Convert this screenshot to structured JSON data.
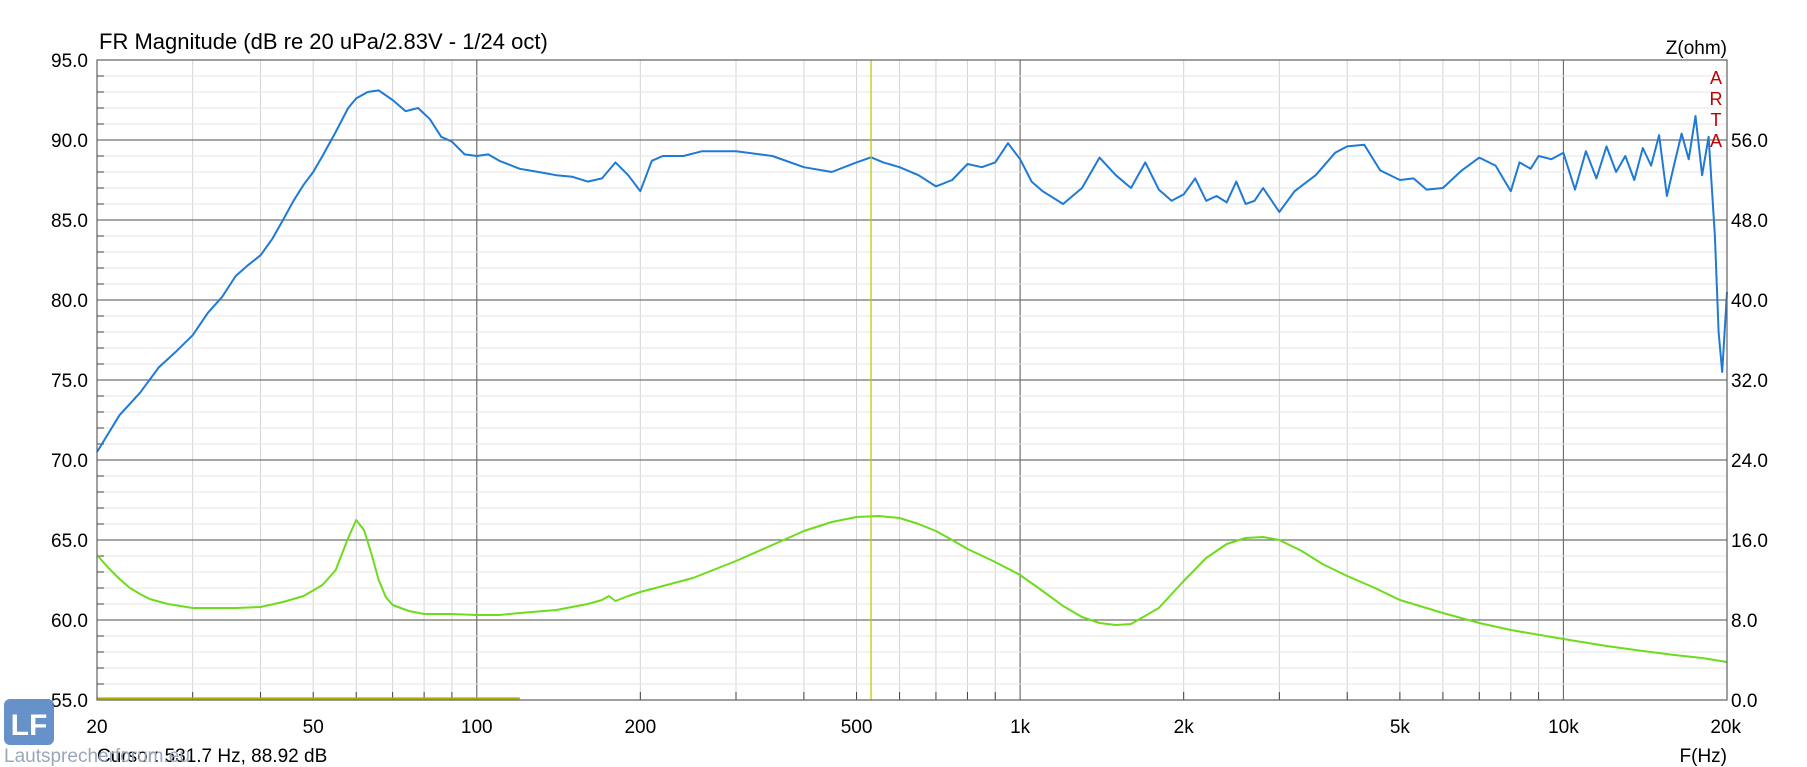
{
  "chart_data": {
    "type": "line",
    "title": "FR Magnitude (dB re 20 uPa/2.83V - 1/24 oct)",
    "xlabel": "F(Hz)",
    "ylabel_right": "Z(ohm)",
    "x_scale": "log",
    "xlim": [
      20,
      20000
    ],
    "ylim": [
      55,
      95
    ],
    "ylim_right": [
      0,
      64
    ],
    "x_ticks": [
      {
        "value": 20,
        "label": "20"
      },
      {
        "value": 50,
        "label": "50"
      },
      {
        "value": 100,
        "label": "100"
      },
      {
        "value": 200,
        "label": "200"
      },
      {
        "value": 500,
        "label": "500"
      },
      {
        "value": 1000,
        "label": "1k"
      },
      {
        "value": 2000,
        "label": "2k"
      },
      {
        "value": 5000,
        "label": "5k"
      },
      {
        "value": 10000,
        "label": "10k"
      },
      {
        "value": 20000,
        "label": "20k"
      }
    ],
    "y_ticks_left": [
      "95.0",
      "90.0",
      "85.0",
      "80.0",
      "75.0",
      "70.0",
      "65.0",
      "60.0",
      "55.0"
    ],
    "y_ticks_right": [
      "56.0",
      "48.0",
      "40.0",
      "32.0",
      "24.0",
      "16.0",
      "8.0",
      "0.0"
    ],
    "grid": true,
    "series": [
      {
        "axis": "left",
        "color": "#1f7ad6",
        "x": [
          20,
          22,
          24,
          26,
          28,
          30,
          32,
          34,
          36,
          38,
          40,
          42,
          44,
          46,
          48,
          50,
          52,
          55,
          58,
          60,
          63,
          66,
          70,
          74,
          78,
          82,
          86,
          90,
          95,
          100,
          105,
          110,
          120,
          130,
          140,
          150,
          160,
          170,
          180,
          190,
          200,
          210,
          220,
          240,
          260,
          280,
          300,
          350,
          400,
          450,
          500,
          531.7,
          560,
          600,
          650,
          700,
          750,
          800,
          850,
          900,
          950,
          1000,
          1050,
          1100,
          1200,
          1300,
          1400,
          1500,
          1600,
          1700,
          1800,
          1900,
          2000,
          2100,
          2200,
          2300,
          2400,
          2500,
          2600,
          2700,
          2800,
          3000,
          3200,
          3500,
          3800,
          4000,
          4300,
          4600,
          5000,
          5300,
          5600,
          6000,
          6500,
          7000,
          7500,
          8000,
          8300,
          8700,
          9000,
          9500,
          10000,
          10500,
          11000,
          11500,
          12000,
          12500,
          13000,
          13500,
          14000,
          14500,
          15000,
          15500,
          16000,
          16500,
          17000,
          17500,
          18000,
          18500,
          19000,
          19300,
          19600,
          20000
        ],
        "y": [
          70.5,
          72.8,
          74.2,
          75.8,
          76.8,
          77.8,
          79.2,
          80.2,
          81.5,
          82.2,
          82.8,
          83.8,
          85.0,
          86.2,
          87.2,
          88.0,
          89.0,
          90.5,
          92.0,
          92.6,
          93.0,
          93.1,
          92.5,
          91.8,
          92.0,
          91.3,
          90.2,
          89.9,
          89.1,
          89.0,
          89.1,
          88.7,
          88.2,
          88.0,
          87.8,
          87.7,
          87.4,
          87.6,
          88.6,
          87.8,
          86.8,
          88.7,
          89.0,
          89.0,
          89.3,
          89.3,
          89.3,
          89.0,
          88.3,
          88.0,
          88.6,
          88.92,
          88.6,
          88.3,
          87.8,
          87.1,
          87.5,
          88.5,
          88.3,
          88.6,
          89.8,
          88.8,
          87.4,
          86.8,
          86.0,
          87.0,
          88.9,
          87.8,
          87.0,
          88.6,
          86.9,
          86.2,
          86.6,
          87.6,
          86.2,
          86.5,
          86.1,
          87.4,
          86.0,
          86.2,
          87.0,
          85.5,
          86.8,
          87.8,
          89.2,
          89.6,
          89.7,
          88.1,
          87.5,
          87.6,
          86.9,
          87.0,
          88.1,
          88.9,
          88.4,
          86.8,
          88.6,
          88.2,
          89.0,
          88.8,
          89.2,
          86.9,
          89.3,
          87.6,
          89.6,
          88.0,
          89.0,
          87.5,
          89.5,
          88.4,
          90.3,
          86.5,
          88.5,
          90.4,
          88.8,
          91.5,
          87.8,
          90.2,
          84.0,
          78.0,
          75.5,
          80.5
        ]
      },
      {
        "axis": "right",
        "color": "#6ddc1c",
        "x": [
          20,
          21,
          22,
          23,
          24,
          25,
          27,
          30,
          33,
          36,
          40,
          44,
          48,
          52,
          55,
          58,
          60,
          62,
          64,
          66,
          68,
          70,
          75,
          80,
          90,
          100,
          110,
          120,
          140,
          160,
          170,
          175,
          180,
          190,
          200,
          250,
          300,
          350,
          400,
          450,
          500,
          550,
          600,
          650,
          700,
          750,
          800,
          900,
          1000,
          1100,
          1200,
          1300,
          1400,
          1500,
          1600,
          1800,
          2000,
          2200,
          2400,
          2600,
          2800,
          3000,
          3300,
          3600,
          4000,
          4500,
          5000,
          6000,
          7000,
          8000,
          10000,
          12000,
          14000,
          16000,
          18000,
          20000
        ],
        "y": [
          14.5,
          13.2,
          12.1,
          11.2,
          10.6,
          10.1,
          9.6,
          9.2,
          9.2,
          9.2,
          9.3,
          9.8,
          10.4,
          11.5,
          13.0,
          16.2,
          18.0,
          17.0,
          14.6,
          12.0,
          10.3,
          9.5,
          8.9,
          8.6,
          8.6,
          8.5,
          8.5,
          8.7,
          9.0,
          9.6,
          10.0,
          10.4,
          9.9,
          10.4,
          10.8,
          12.2,
          13.9,
          15.5,
          16.9,
          17.8,
          18.3,
          18.4,
          18.2,
          17.6,
          16.9,
          16.0,
          15.1,
          13.8,
          12.5,
          10.9,
          9.4,
          8.3,
          7.7,
          7.5,
          7.6,
          9.2,
          11.9,
          14.2,
          15.6,
          16.2,
          16.3,
          16.0,
          14.9,
          13.6,
          12.4,
          11.2,
          10.0,
          8.7,
          7.7,
          7.0,
          6.1,
          5.4,
          4.9,
          4.5,
          4.2,
          3.8
        ]
      }
    ],
    "cursor": {
      "x": 531.7,
      "y": 88.92,
      "color": "#c8c800",
      "label": "Cursor: 531.7 Hz, 88.92 dB"
    },
    "limit_line": {
      "x_start": 20,
      "x_end": 120,
      "y": 55.1,
      "color": "#b0b000"
    },
    "side_label": "ARTA",
    "watermark": {
      "logo": "LF",
      "text": "Lautsprecherforum.eu"
    }
  }
}
